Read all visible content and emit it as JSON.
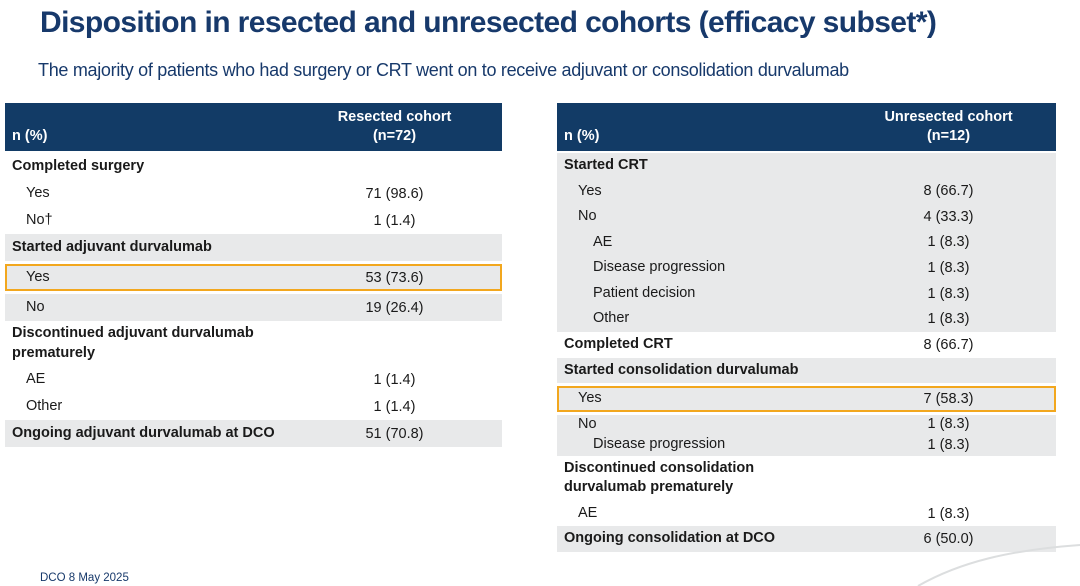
{
  "slide": {
    "title": "Disposition in resected and unresected cohorts (efficacy subset*)",
    "subtitle": "The majority of patients who had surgery or CRT went on to receive adjuvant or consolidation durvalumab",
    "footnote": "DCO 8 May 2025"
  },
  "colors": {
    "header_navy": "#123B66",
    "title_navy": "#17396B",
    "band_gray": "#E8E9EA",
    "highlight_orange": "#F2A71E"
  },
  "tables": [
    {
      "name": "resected-cohort-table",
      "header": {
        "label_col": "n (%)",
        "cohort_line1": "Resected cohort",
        "cohort_line2": "(n=72)"
      },
      "rows": [
        {
          "label": "Completed surgery",
          "value": "",
          "bold": true,
          "indent": 0,
          "shade": "white"
        },
        {
          "label": "Yes",
          "value": "71 (98.6)",
          "indent": 1,
          "shade": "white"
        },
        {
          "label": "No†",
          "value": "1 (1.4)",
          "indent": 1,
          "shade": "white"
        },
        {
          "label": "Started adjuvant durvalumab",
          "value": "",
          "bold": true,
          "indent": 0,
          "shade": "gray"
        },
        {
          "label": "Yes",
          "value": "53 (73.6)",
          "indent": 1,
          "shade": "gray",
          "highlight": true
        },
        {
          "label": "No",
          "value": "19 (26.4)",
          "indent": 1,
          "shade": "gray"
        },
        {
          "label": "Discontinued adjuvant durvalumab prematurely",
          "value": "",
          "bold": true,
          "indent": 0,
          "shade": "white"
        },
        {
          "label": "AE",
          "value": "1 (1.4)",
          "indent": 1,
          "shade": "white"
        },
        {
          "label": "Other",
          "value": "1 (1.4)",
          "indent": 1,
          "shade": "white"
        },
        {
          "label": "Ongoing adjuvant durvalumab at DCO",
          "value": "51 (70.8)",
          "bold": true,
          "indent": 0,
          "shade": "gray"
        }
      ]
    },
    {
      "name": "unresected-cohort-table",
      "header": {
        "label_col": "n (%)",
        "cohort_line1": "Unresected cohort",
        "cohort_line2": "(n=12)"
      },
      "rows": [
        {
          "label": "Started CRT",
          "value": "",
          "bold": true,
          "indent": 0,
          "shade": "gray"
        },
        {
          "label": "Yes",
          "value": "8 (66.7)",
          "indent": 1,
          "shade": "gray"
        },
        {
          "label": "No",
          "value": "4 (33.3)",
          "indent": 1,
          "shade": "gray"
        },
        {
          "label": "AE",
          "value": "1 (8.3)",
          "indent": 2,
          "shade": "gray"
        },
        {
          "label": "Disease progression",
          "value": "1 (8.3)",
          "indent": 2,
          "shade": "gray"
        },
        {
          "label": "Patient decision",
          "value": "1 (8.3)",
          "indent": 2,
          "shade": "gray"
        },
        {
          "label": "Other",
          "value": "1 (8.3)",
          "indent": 2,
          "shade": "gray"
        },
        {
          "label": "Completed CRT",
          "value": "8 (66.7)",
          "bold": true,
          "indent": 0,
          "shade": "white"
        },
        {
          "label": "Started consolidation durvalumab",
          "value": "",
          "bold": true,
          "indent": 0,
          "shade": "gray"
        },
        {
          "label": "Yes",
          "value": "7 (58.3)",
          "indent": 1,
          "shade": "gray",
          "highlight": true
        },
        {
          "label": "No",
          "value": "1 (8.3)",
          "indent": 1,
          "shade": "gray",
          "compact": true
        },
        {
          "label": "Disease progression",
          "value": "1 (8.3)",
          "indent": 2,
          "shade": "gray",
          "compact": true
        },
        {
          "label": "Discontinued consolidation durvalumab prematurely",
          "value": "",
          "bold": true,
          "indent": 0,
          "shade": "white"
        },
        {
          "label": "AE",
          "value": "1 (8.3)",
          "indent": 1,
          "shade": "white"
        },
        {
          "label": "Ongoing consolidation at DCO",
          "value": "6 (50.0)",
          "bold": true,
          "indent": 0,
          "shade": "gray"
        }
      ]
    }
  ]
}
